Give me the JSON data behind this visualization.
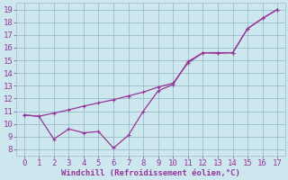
{
  "line1_x": [
    0,
    1,
    2,
    3,
    4,
    5,
    6,
    7,
    8,
    9,
    10,
    11,
    12,
    13,
    14,
    15,
    16,
    17
  ],
  "line1_y": [
    10.7,
    10.6,
    10.85,
    11.1,
    11.4,
    11.65,
    11.9,
    12.2,
    12.5,
    12.9,
    13.2,
    14.8,
    15.6,
    15.55,
    15.6,
    17.5,
    18.3,
    19.0
  ],
  "line2_x": [
    0,
    1,
    2,
    3,
    4,
    5,
    6,
    7,
    8,
    9,
    10,
    11,
    12,
    13,
    14,
    15,
    16,
    17
  ],
  "line2_y": [
    10.7,
    10.6,
    8.8,
    9.6,
    9.3,
    9.4,
    8.1,
    9.1,
    11.0,
    12.6,
    13.1,
    14.9,
    15.6,
    15.6,
    15.6,
    17.5,
    18.3,
    19.0
  ],
  "line_color": "#993399",
  "bg_color": "#cce8ee",
  "grid_color": "#99bbcc",
  "xlabel": "Windchill (Refroidissement éolien,°C)",
  "xlabel_color": "#993399",
  "xlabel_fontsize": 6.5,
  "tick_color": "#993399",
  "ytick_labels": [
    "8",
    "9",
    "10",
    "11",
    "12",
    "13",
    "14",
    "15",
    "16",
    "17",
    "18",
    "19"
  ],
  "ytick_fontsize": 6.5,
  "xtick_fontsize": 6.5,
  "xlim": [
    -0.5,
    17.5
  ],
  "ylim": [
    7.5,
    19.5
  ],
  "xticks": [
    0,
    1,
    2,
    3,
    4,
    5,
    6,
    7,
    8,
    9,
    10,
    11,
    12,
    13,
    14,
    15,
    16,
    17
  ],
  "yticks": [
    8,
    9,
    10,
    11,
    12,
    13,
    14,
    15,
    16,
    17,
    18,
    19
  ],
  "marker_size": 3.0,
  "line_width": 0.9
}
